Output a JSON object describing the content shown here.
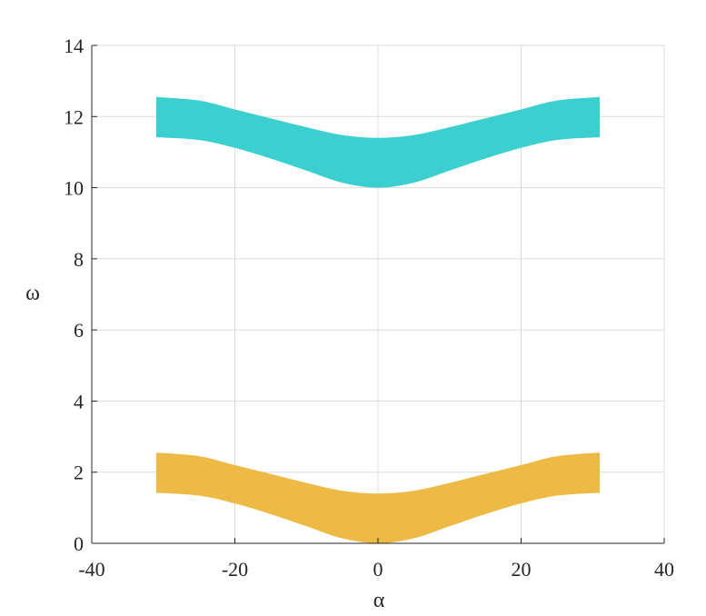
{
  "chart_data": {
    "type": "area",
    "title": "",
    "xlabel": "α",
    "ylabel": "ω",
    "xlim": [
      -40,
      40
    ],
    "ylim": [
      0,
      14
    ],
    "xticks": [
      -40,
      -20,
      0,
      20,
      40
    ],
    "xtick_labels": [
      "-40",
      "-20",
      "0",
      "20",
      "40"
    ],
    "yticks": [
      0,
      2,
      4,
      6,
      8,
      10,
      12,
      14
    ],
    "ytick_labels": [
      "0",
      "2",
      "4",
      "6",
      "8",
      "10",
      "12",
      "14"
    ],
    "grid": true,
    "series": [
      {
        "color": "#EDBB45",
        "x": [
          -31,
          -25,
          -20,
          -15,
          -10,
          -5,
          0,
          5,
          10,
          15,
          20,
          25,
          31
        ],
        "lower": [
          1.42,
          1.34,
          1.12,
          0.82,
          0.48,
          0.14,
          0.0,
          0.14,
          0.48,
          0.82,
          1.12,
          1.34,
          1.42
        ],
        "upper": [
          2.55,
          2.45,
          2.2,
          1.95,
          1.7,
          1.48,
          1.4,
          1.48,
          1.7,
          1.95,
          2.2,
          2.45,
          2.55
        ]
      },
      {
        "color": "#3CCFCF",
        "x": [
          -31,
          -25,
          -20,
          -15,
          -10,
          -5,
          0,
          5,
          10,
          15,
          20,
          25,
          31
        ],
        "lower": [
          11.42,
          11.34,
          11.12,
          10.82,
          10.48,
          10.14,
          10.0,
          10.14,
          10.48,
          10.82,
          11.12,
          11.34,
          11.42
        ],
        "upper": [
          12.55,
          12.45,
          12.2,
          11.95,
          11.7,
          11.48,
          11.4,
          11.48,
          11.7,
          11.95,
          12.2,
          12.45,
          12.55
        ]
      }
    ]
  }
}
